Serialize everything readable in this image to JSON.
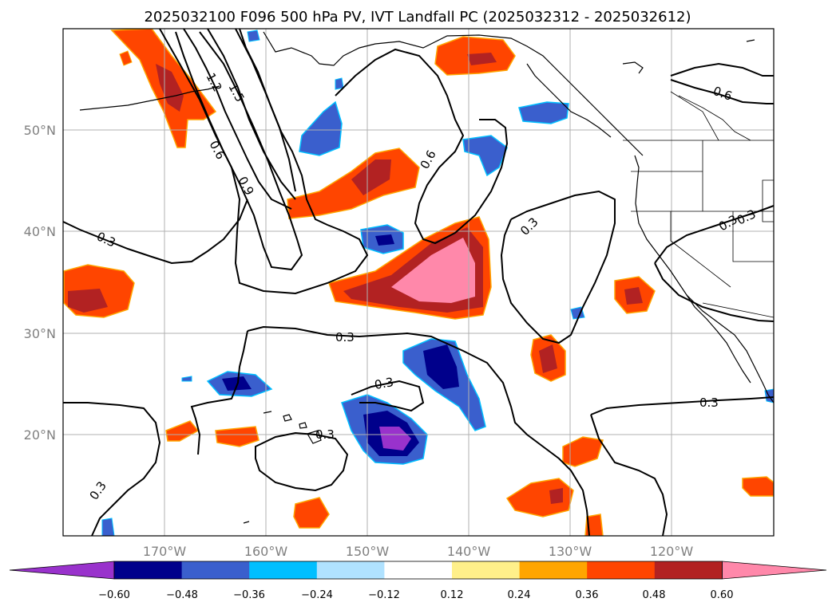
{
  "title": "2025032100 F096 500 hPa PV, IVT Landfall PC (2025032312 - 2025032612)",
  "map": {
    "lat_labels": [
      "50°N",
      "40°N",
      "30°N",
      "20°N"
    ],
    "lon_labels": [
      "170°W",
      "160°W",
      "150°W",
      "140°W",
      "130°W",
      "120°W"
    ],
    "extent": {
      "lon": [
        -180,
        -110
      ],
      "lat": [
        10,
        60
      ]
    },
    "gridlines": true,
    "contour_labels": [
      "1.2",
      "1.5",
      "0.6",
      "0.9",
      "0.6",
      "0.6",
      "0.3",
      "0.3",
      "0.3",
      "0.3",
      "0.3",
      "0.3",
      "0.3",
      "0.3",
      "0.3"
    ]
  },
  "colorbar": {
    "ticks": [
      "−0.60",
      "−0.48",
      "−0.36",
      "−0.24",
      "−0.12",
      "0.12",
      "0.24",
      "0.36",
      "0.48",
      "0.60"
    ],
    "colors": [
      "#9932cc",
      "#00008b",
      "#3a5fcd",
      "#00bfff",
      "#b0e2ff",
      "#ffffff",
      "#fff08a",
      "#ffa500",
      "#ff4500",
      "#b22222",
      "#ff88aa",
      "#ff88aa"
    ],
    "extend": "both"
  }
}
